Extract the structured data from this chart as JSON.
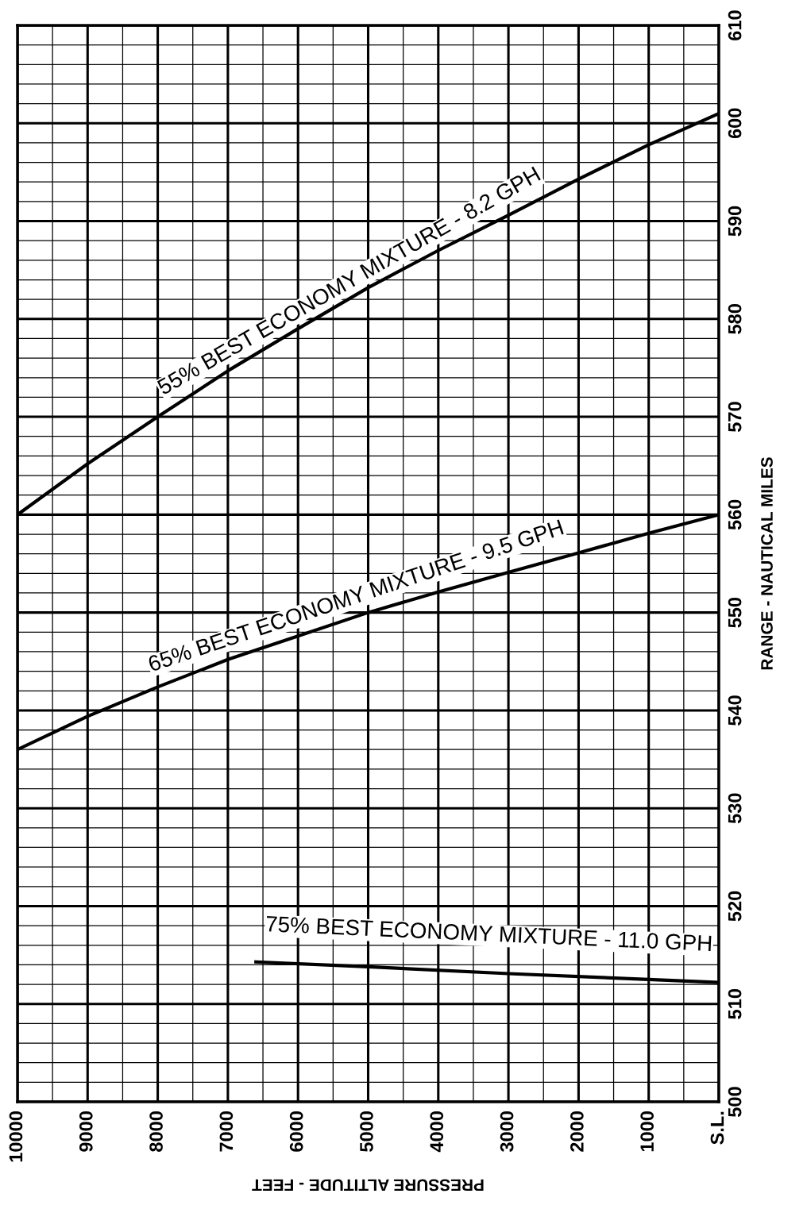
{
  "chart_data": {
    "type": "line",
    "xlabel": "PRESSURE ALTITUDE - FEET",
    "ylabel": "RANGE - NAUTICAL MILES",
    "x": [
      10000,
      9000,
      8000,
      7000,
      6000,
      5000,
      4000,
      3000,
      2000,
      1000,
      0
    ],
    "series": [
      {
        "name": "55% BEST ECONOMY MIXTURE - 8.2 GPH",
        "color": "#000000",
        "values": [
          560,
          565.2,
          570,
          574.7,
          579,
          583.2,
          587,
          590.6,
          594.3,
          597.8,
          601
        ]
      },
      {
        "name": "65% BEST ECONOMY MIXTURE - 9.5 GPH",
        "color": "#000000",
        "values": [
          536,
          539.4,
          542.4,
          545.2,
          547.6,
          550,
          552.1,
          554.1,
          556.1,
          558.1,
          560
        ]
      },
      {
        "name": "75% BEST ECONOMY MIXTURE - 11.0 GPH",
        "color": "#000000",
        "x": [
          6600,
          5000,
          3000,
          1000,
          0
        ],
        "values": [
          514.3,
          513.8,
          513.1,
          512.5,
          512.2
        ]
      }
    ],
    "xlim": [
      10000,
      0
    ],
    "ylim": [
      500,
      610
    ],
    "xticks": [
      10000,
      {
        "value": 9500,
        "label": null
      },
      9000,
      {
        "value": 8500,
        "label": null
      },
      8000,
      {
        "value": 7500,
        "label": null
      },
      7000,
      {
        "value": 6500,
        "label": null
      },
      6000,
      {
        "value": 5500,
        "label": null
      },
      5000,
      {
        "value": 4500,
        "label": null
      },
      4000,
      {
        "value": 3500,
        "label": null
      },
      3000,
      {
        "value": 2500,
        "label": null
      },
      2000,
      {
        "value": 1500,
        "label": null
      },
      1000,
      {
        "value": 500,
        "label": null
      },
      {
        "value": 0,
        "label": "S.L."
      }
    ],
    "yticks": [
      500,
      {
        "value": 502,
        "label": null
      },
      {
        "value": 504,
        "label": null
      },
      {
        "value": 506,
        "label": null
      },
      {
        "value": 508,
        "label": null
      },
      510,
      {
        "value": 512,
        "label": null
      },
      {
        "value": 514,
        "label": null
      },
      {
        "value": 516,
        "label": null
      },
      {
        "value": 518,
        "label": null
      },
      520,
      {
        "value": 522,
        "label": null
      },
      {
        "value": 524,
        "label": null
      },
      {
        "value": 526,
        "label": null
      },
      {
        "value": 528,
        "label": null
      },
      530,
      {
        "value": 532,
        "label": null
      },
      {
        "value": 534,
        "label": null
      },
      {
        "value": 536,
        "label": null
      },
      {
        "value": 538,
        "label": null
      },
      540,
      {
        "value": 542,
        "label": null
      },
      {
        "value": 544,
        "label": null
      },
      {
        "value": 546,
        "label": null
      },
      {
        "value": 548,
        "label": null
      },
      550,
      {
        "value": 552,
        "label": null
      },
      {
        "value": 554,
        "label": null
      },
      {
        "value": 556,
        "label": null
      },
      {
        "value": 558,
        "label": null
      },
      560,
      {
        "value": 562,
        "label": null
      },
      {
        "value": 564,
        "label": null
      },
      {
        "value": 566,
        "label": null
      },
      {
        "value": 568,
        "label": null
      },
      570,
      {
        "value": 572,
        "label": null
      },
      {
        "value": 574,
        "label": null
      },
      {
        "value": 576,
        "label": null
      },
      {
        "value": 578,
        "label": null
      },
      580,
      {
        "value": 582,
        "label": null
      },
      {
        "value": 584,
        "label": null
      },
      {
        "value": 586,
        "label": null
      },
      {
        "value": 588,
        "label": null
      },
      590,
      {
        "value": 592,
        "label": null
      },
      {
        "value": 594,
        "label": null
      },
      {
        "value": 596,
        "label": null
      },
      {
        "value": 598,
        "label": null
      },
      600,
      {
        "value": 602,
        "label": null
      },
      {
        "value": 604,
        "label": null
      },
      {
        "value": 606,
        "label": null
      },
      {
        "value": 608,
        "label": null
      },
      610
    ],
    "grid": true,
    "legend": false,
    "marker": "none",
    "line_style": "solid"
  }
}
